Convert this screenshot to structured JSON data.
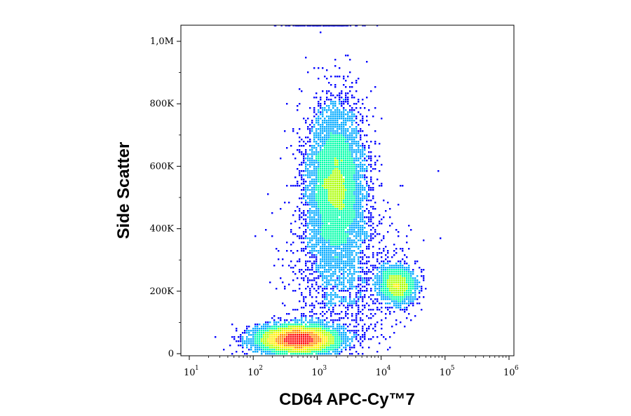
{
  "chart_data": {
    "type": "scatter",
    "style": "flow-cytometry pseudocolor density dot plot",
    "xlabel": "CD64 APC-Cy™7",
    "ylabel": "Side Scatter",
    "x_scale": "log",
    "xlim": [
      10,
      1000000
    ],
    "ylim": [
      0,
      1050000
    ],
    "x_ticks": [
      {
        "base": "10",
        "exp": "1",
        "value": 10
      },
      {
        "base": "10",
        "exp": "2",
        "value": 100
      },
      {
        "base": "10",
        "exp": "3",
        "value": 1000
      },
      {
        "base": "10",
        "exp": "4",
        "value": 10000
      },
      {
        "base": "10",
        "exp": "5",
        "value": 100000
      },
      {
        "base": "10",
        "exp": "6",
        "value": 1000000
      }
    ],
    "y_ticks": [
      {
        "label": "0",
        "value": 0
      },
      {
        "label": "200K",
        "value": 200000
      },
      {
        "label": "400K",
        "value": 400000
      },
      {
        "label": "600K",
        "value": 600000
      },
      {
        "label": "800K",
        "value": 800000
      },
      {
        "label": "1,0M",
        "value": 1000000
      }
    ],
    "density_colormap": [
      "#0000ff",
      "#00aaff",
      "#00ffaa",
      "#aaff00",
      "#ffee00",
      "#ff8800",
      "#ff0000"
    ],
    "populations": [
      {
        "center_x": 500,
        "center_y": 45000,
        "spread_log10_x": 0.32,
        "spread_y": 22000,
        "relative_count": 0.42,
        "peak_density": "high"
      },
      {
        "center_x": 2000,
        "center_y": 530000,
        "spread_log10_x": 0.22,
        "spread_y": 130000,
        "relative_count": 0.4,
        "peak_density": "medium"
      },
      {
        "center_x": 18000,
        "center_y": 220000,
        "spread_log10_x": 0.15,
        "spread_y": 30000,
        "relative_count": 0.1,
        "peak_density": "medium-low"
      },
      {
        "center_x": 2500,
        "center_y": 250000,
        "spread_log10_x": 0.45,
        "spread_y": 140000,
        "relative_count": 0.08,
        "peak_density": "low"
      }
    ]
  }
}
